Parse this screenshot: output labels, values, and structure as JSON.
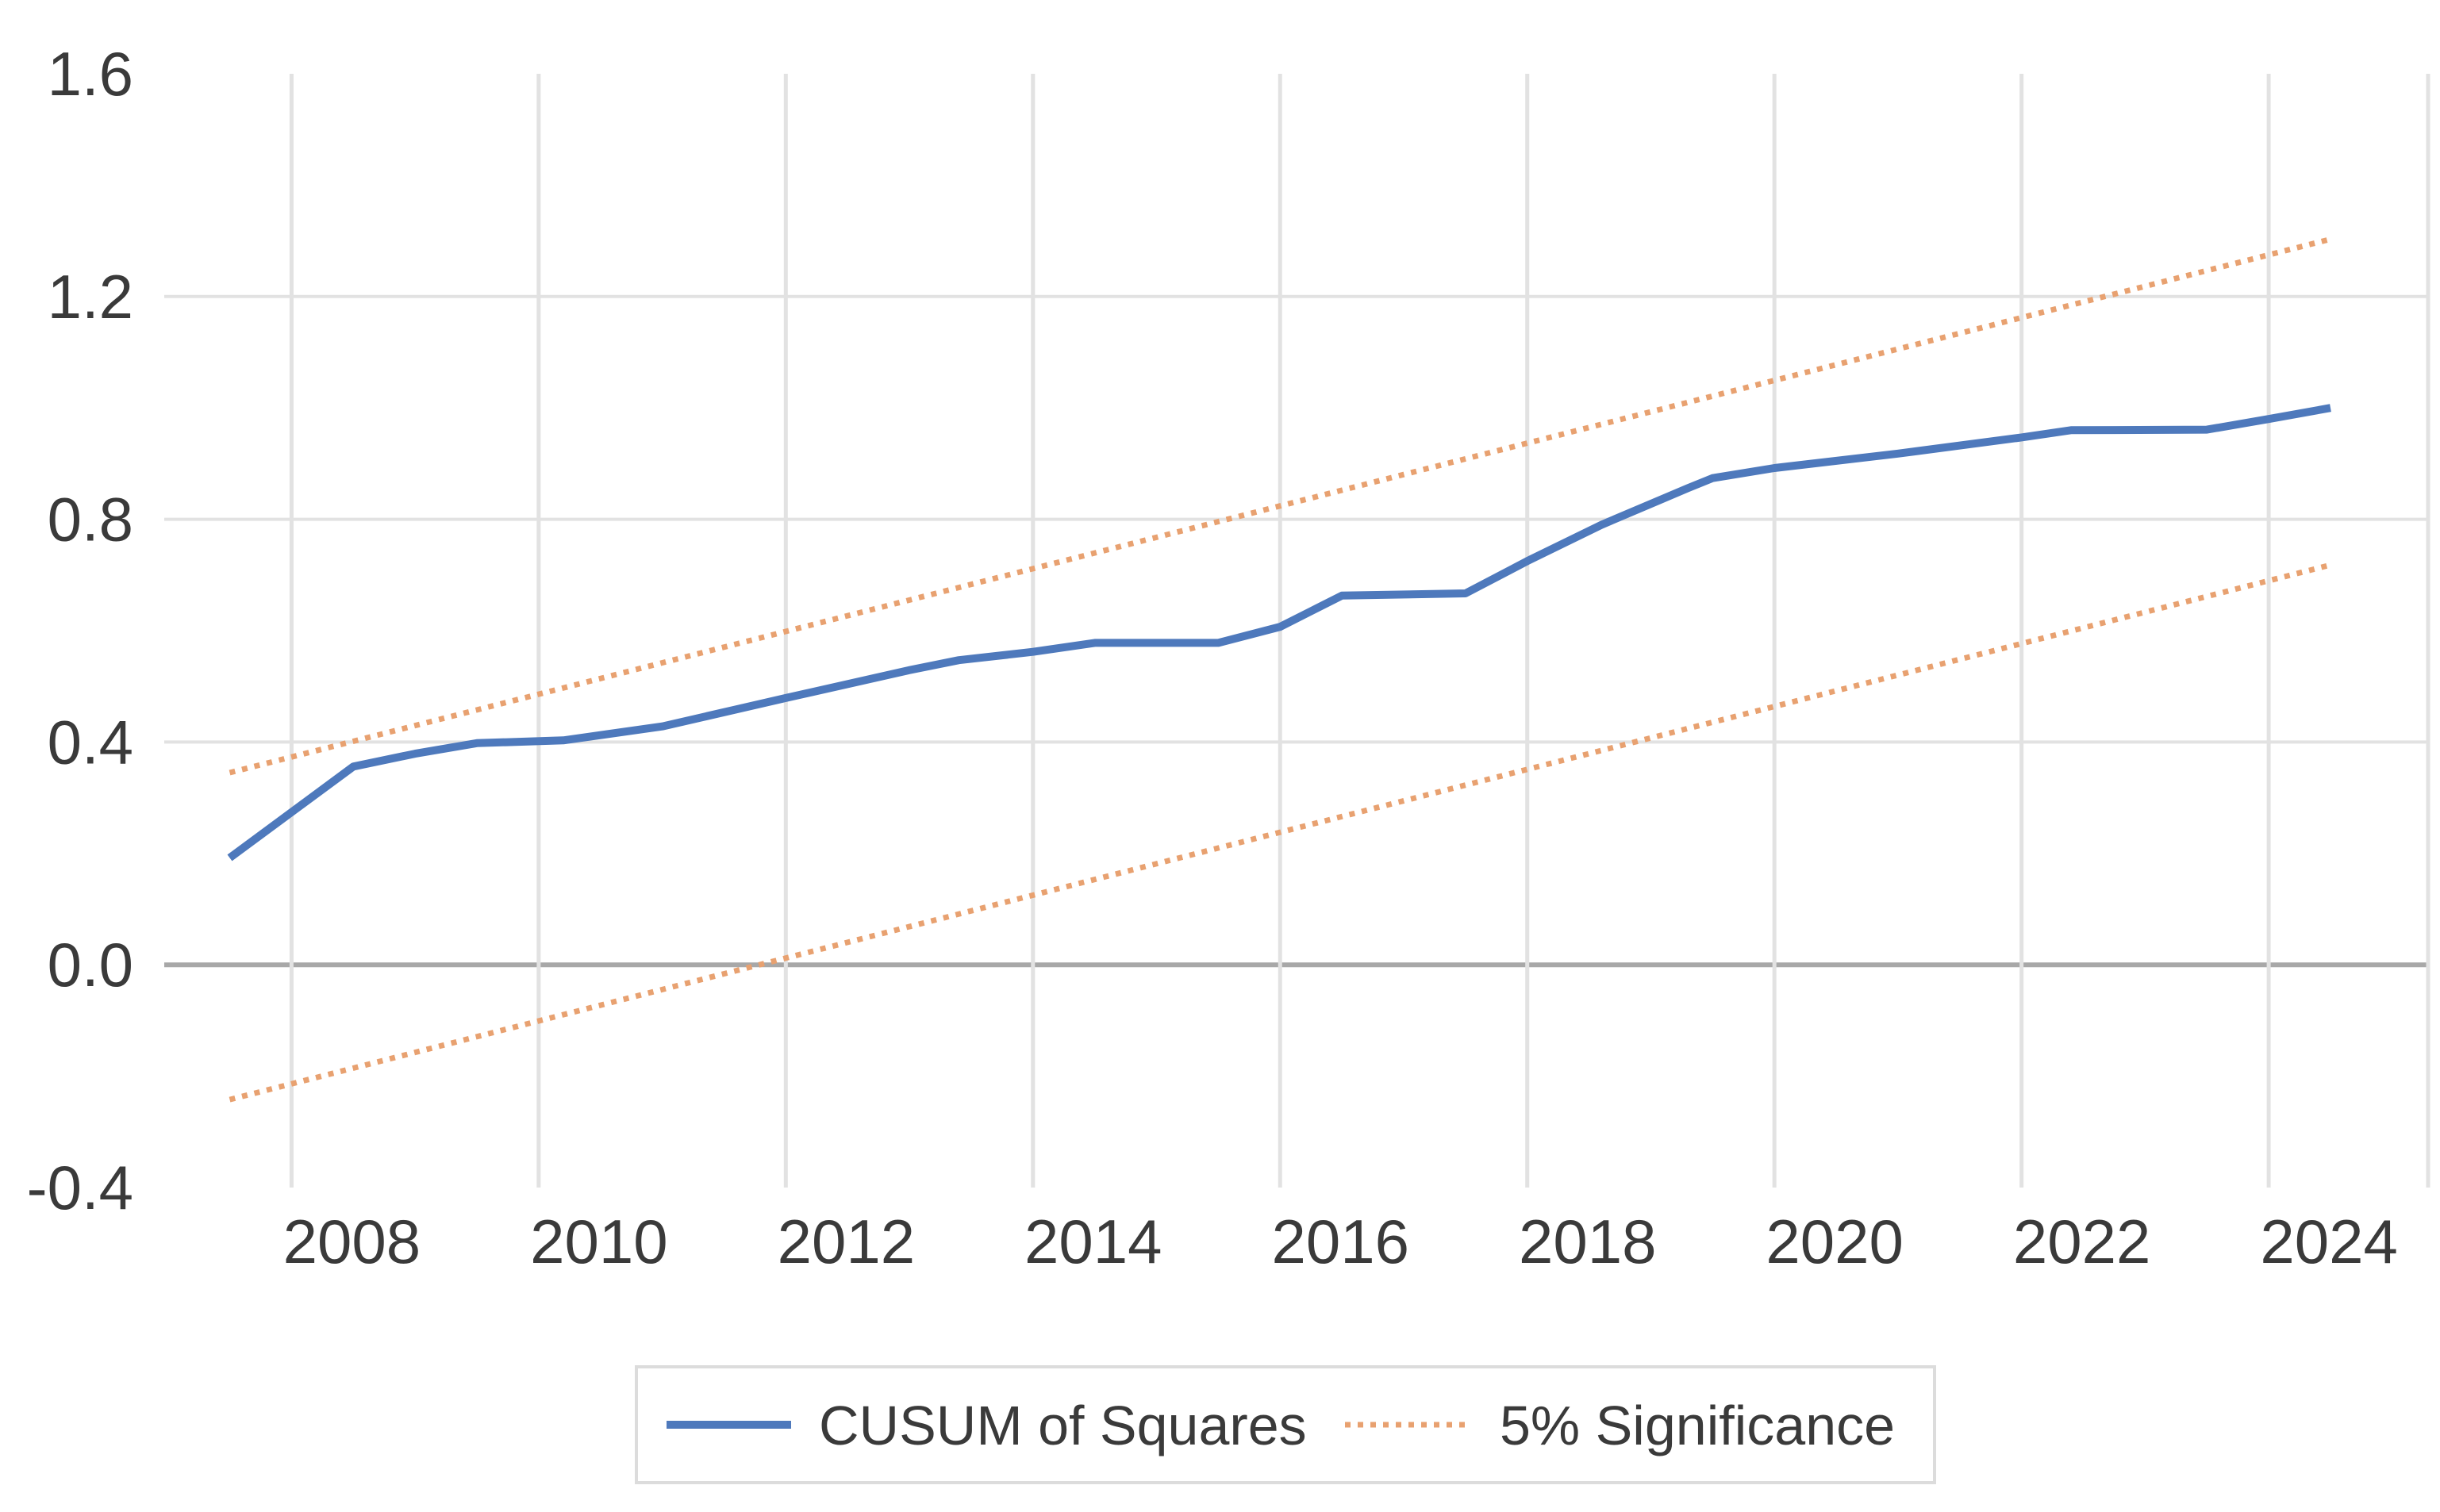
{
  "chart_data": {
    "type": "line",
    "title": "",
    "xlabel": "",
    "ylabel": "",
    "xlim": [
      2006.97,
      2025.29
    ],
    "ylim": [
      -0.4,
      1.6
    ],
    "grid": "on",
    "x_ticks": [
      2008,
      2010,
      2012,
      2014,
      2016,
      2018,
      2020,
      2022,
      2024
    ],
    "y_ticks": [
      1.6,
      1.2,
      0.8,
      0.4,
      0.0,
      -0.4
    ],
    "series": [
      {
        "name": "CUSUM of Squares",
        "style": "solid",
        "color": "#4E79BC",
        "points": [
          [
            2007.5,
            0.192
          ],
          [
            2008.5,
            0.356
          ],
          [
            2009.0,
            0.379
          ],
          [
            2009.5,
            0.398
          ],
          [
            2010.2,
            0.403
          ],
          [
            2011.0,
            0.428
          ],
          [
            2012.0,
            0.479
          ],
          [
            2013.0,
            0.529
          ],
          [
            2013.4,
            0.547
          ],
          [
            2014.0,
            0.562
          ],
          [
            2014.5,
            0.578
          ],
          [
            2015.5,
            0.578
          ],
          [
            2016.0,
            0.607
          ],
          [
            2016.5,
            0.663
          ],
          [
            2017.5,
            0.667
          ],
          [
            2018.0,
            0.725
          ],
          [
            2018.6,
            0.79
          ],
          [
            2019.3,
            0.856
          ],
          [
            2019.5,
            0.874
          ],
          [
            2020.0,
            0.892
          ],
          [
            2021.0,
            0.918
          ],
          [
            2022.0,
            0.947
          ],
          [
            2022.4,
            0.96
          ],
          [
            2023.5,
            0.961
          ],
          [
            2024.0,
            0.98
          ],
          [
            2024.5,
            1.0
          ]
        ]
      },
      {
        "name": "5% Significance (upper)",
        "style": "dotted",
        "color": "#E8A170",
        "points": [
          [
            2007.5,
            0.345
          ],
          [
            2024.5,
            1.303
          ]
        ]
      },
      {
        "name": "5% Significance (lower)",
        "style": "dotted",
        "color": "#E8A170",
        "points": [
          [
            2007.5,
            -0.242
          ],
          [
            2024.5,
            0.718
          ]
        ]
      }
    ],
    "legend_position": "bottom-center",
    "legend": [
      {
        "label": "CUSUM of Squares",
        "style": "solid",
        "color": "#4E79BC"
      },
      {
        "label": "5% Significance",
        "style": "dotted",
        "color": "#E8A170"
      }
    ]
  },
  "colors": {
    "background": "#ffffff",
    "gridline": "#E2E2E2",
    "zero_line": "#A8A8A8",
    "tick_text": "#3a3a3a",
    "legend_border": "#DCDCDC",
    "series_blue": "#4E79BC",
    "series_orange": "#E8A170"
  }
}
